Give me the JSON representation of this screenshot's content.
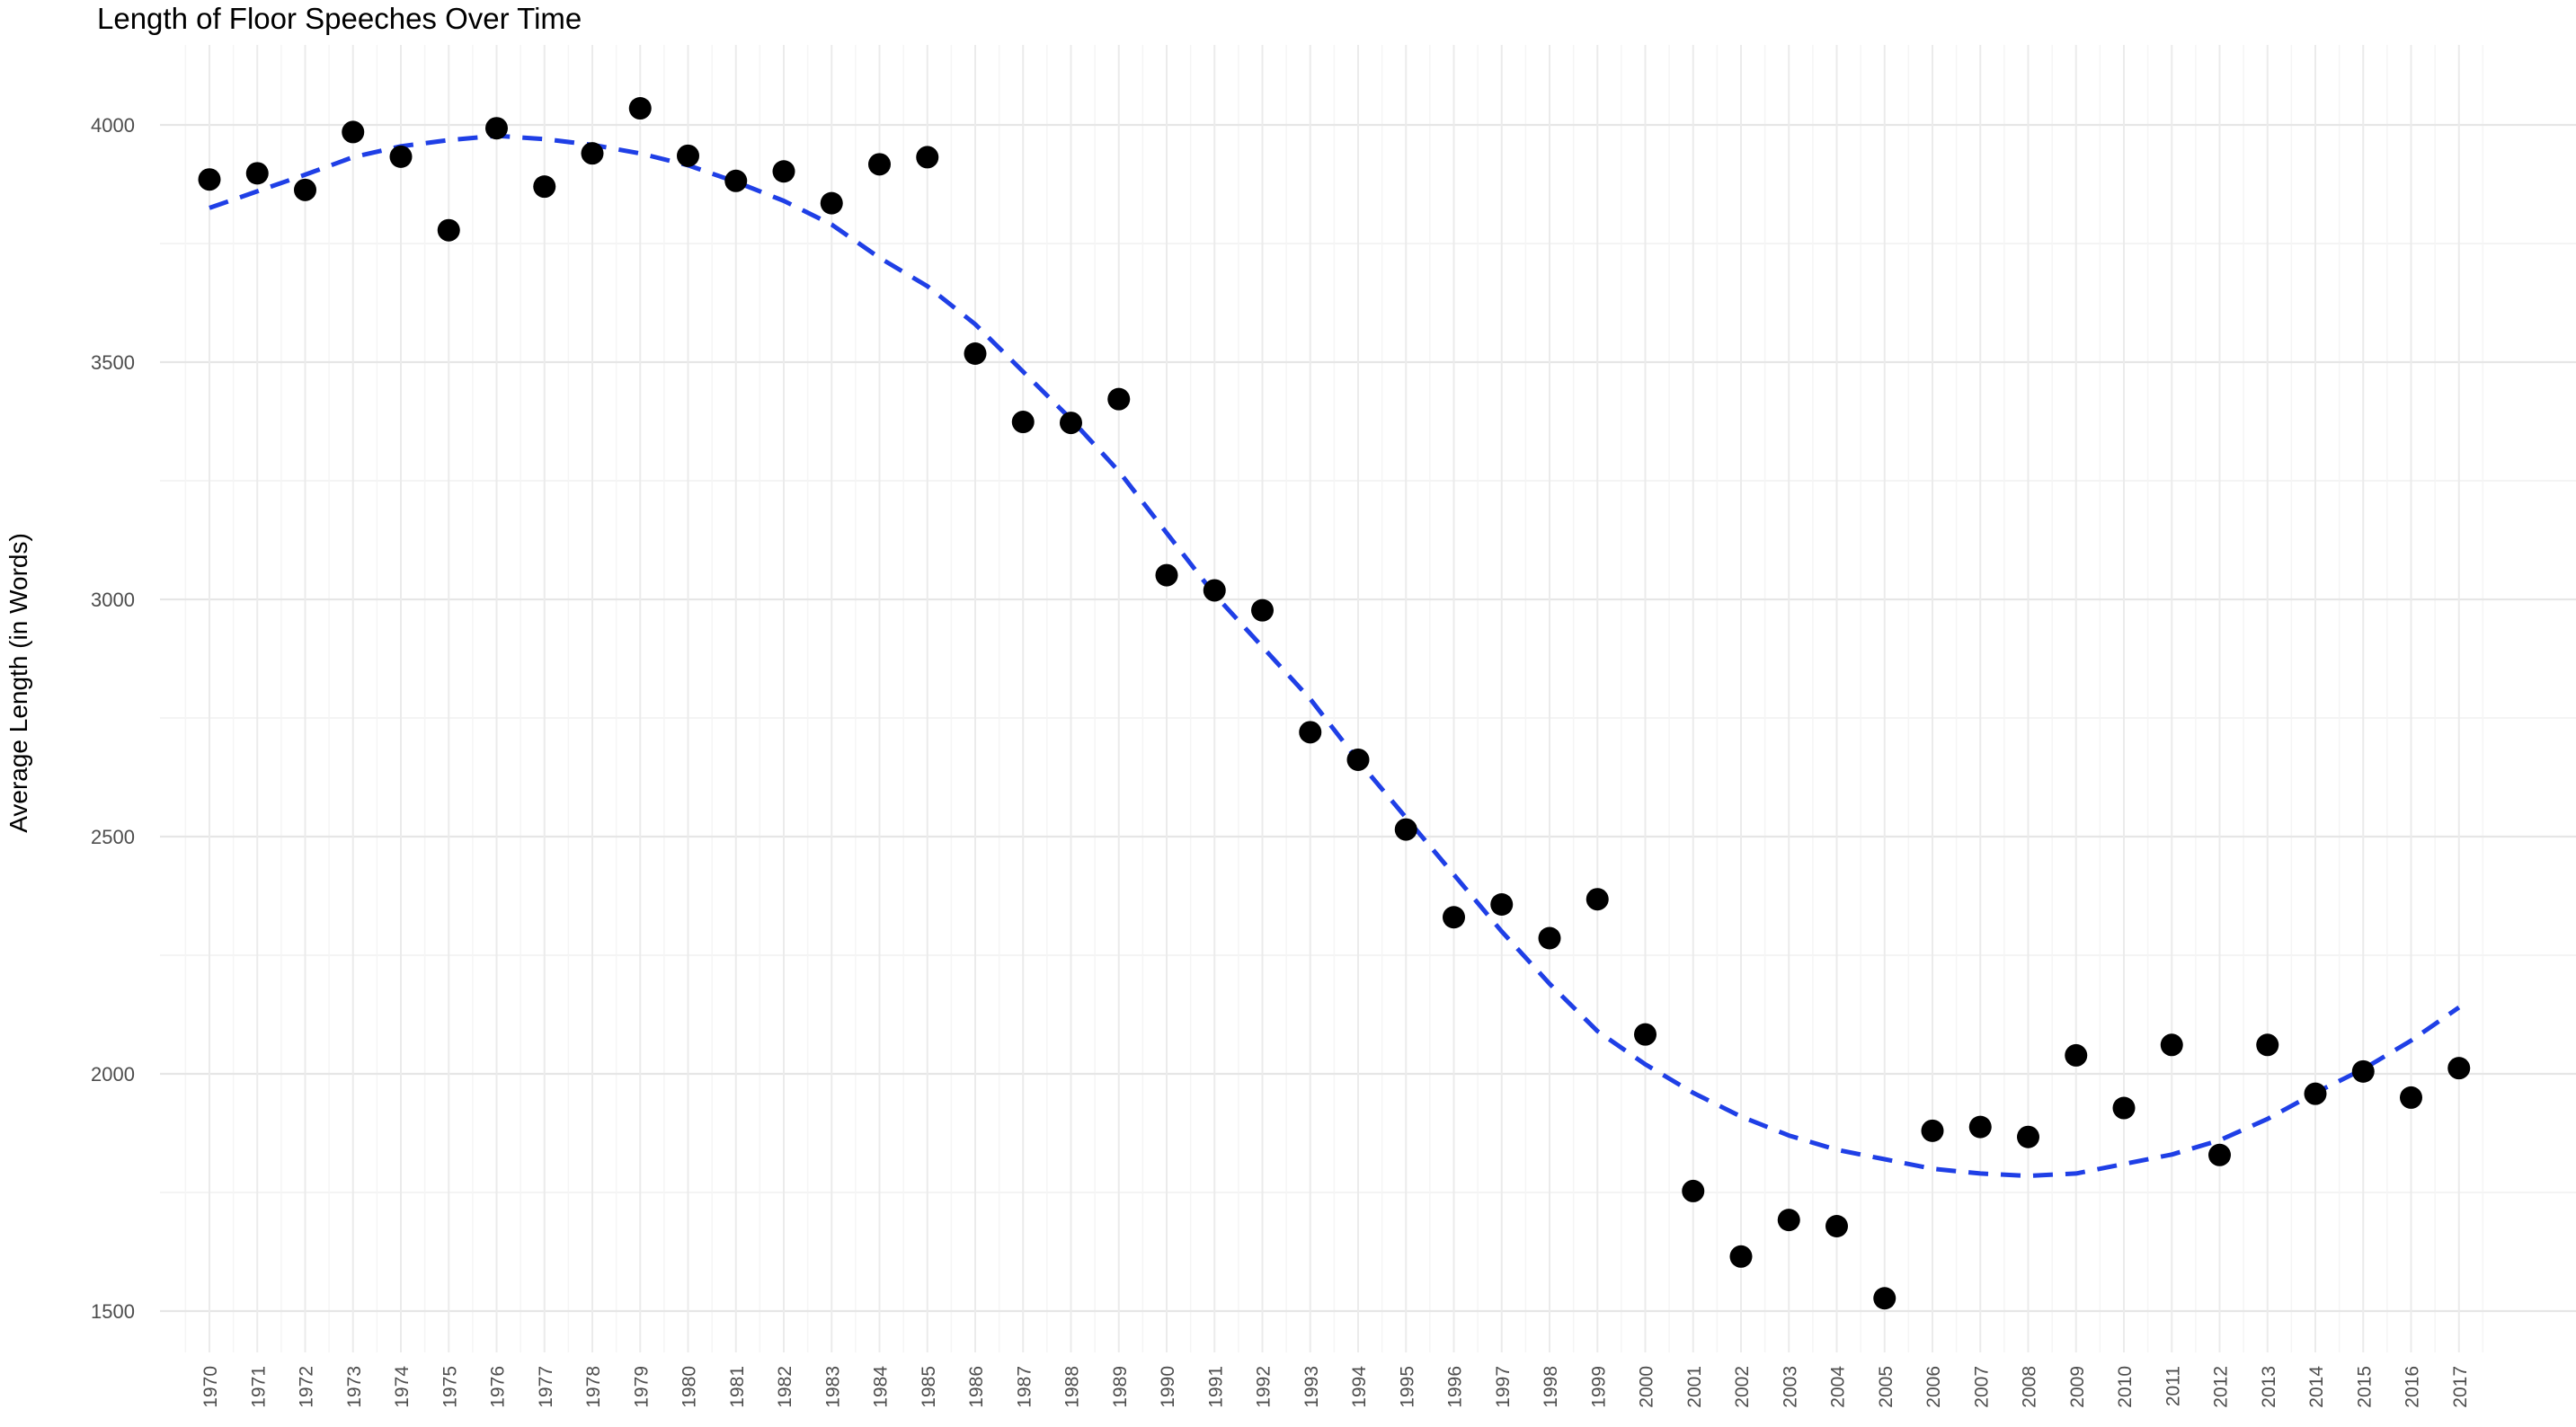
{
  "chart_data": {
    "type": "scatter",
    "title": "Length of Floor Speeches Over Time",
    "xlabel": "",
    "ylabel": "Average Length (in Words)",
    "ylim": [
      1400,
      4160
    ],
    "y_ticks": [
      1500,
      2000,
      2500,
      3000,
      3500,
      4000
    ],
    "grid": true,
    "categories": [
      "1970",
      "1971",
      "1972",
      "1973",
      "1974",
      "1975",
      "1976",
      "1977",
      "1978",
      "1979",
      "1980",
      "1981",
      "1982",
      "1983",
      "1984",
      "1985",
      "1986",
      "1987",
      "1988",
      "1989",
      "1990",
      "1991",
      "1992",
      "1993",
      "1994",
      "1995",
      "1996",
      "1997",
      "1998",
      "1999",
      "2000",
      "2001",
      "2002",
      "2003",
      "2004",
      "2005",
      "2006",
      "2007",
      "2008",
      "2009",
      "2010",
      "2011",
      "2012",
      "2013",
      "2014",
      "2015",
      "2016",
      "2017"
    ],
    "values": [
      3885,
      3898,
      3863,
      3985,
      3933,
      3778,
      3993,
      3870,
      3940,
      4035,
      3935,
      3882,
      3902,
      3835,
      3917,
      3932,
      3518,
      3374,
      3372,
      3422,
      3051,
      3019,
      2977,
      2720,
      2662,
      2515,
      2330,
      2357,
      2286,
      2368,
      2083,
      1753,
      1615,
      1692,
      1679,
      1527,
      1880,
      1888,
      1867,
      2039,
      1928,
      2061,
      1829,
      2061,
      1958,
      2005,
      1950,
      2012
    ],
    "point_color": "#000000",
    "trend": {
      "style": "dashed",
      "color": "#1f3fe6",
      "values": [
        3825,
        3860,
        3895,
        3932,
        3955,
        3968,
        3977,
        3970,
        3958,
        3940,
        3915,
        3880,
        3840,
        3790,
        3720,
        3660,
        3580,
        3480,
        3380,
        3270,
        3140,
        3010,
        2900,
        2790,
        2660,
        2540,
        2420,
        2300,
        2190,
        2090,
        2020,
        1960,
        1910,
        1870,
        1840,
        1820,
        1800,
        1790,
        1785,
        1790,
        1810,
        1830,
        1860,
        1905,
        1960,
        2010,
        2070,
        2140
      ]
    }
  }
}
